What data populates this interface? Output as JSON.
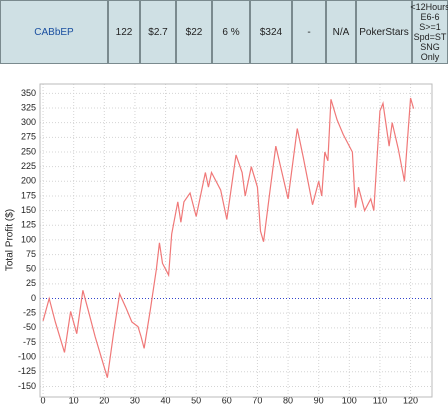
{
  "table": {
    "row": [
      "CABbEP",
      "122",
      "$2.7",
      "$22",
      "6 %",
      "$324",
      "-",
      "N/A",
      "PokerStars"
    ],
    "filter": [
      "<12Hours",
      "E6-6",
      "S>=1",
      "Spd=ST",
      "SNG",
      "Only"
    ]
  },
  "chart_data": {
    "type": "line",
    "y_label": "Total Profit ($)",
    "color": "#f07878",
    "grid": true,
    "x": [
      0,
      2,
      4,
      7,
      9,
      11,
      13,
      15,
      17,
      19,
      21,
      23,
      25,
      27,
      29,
      31,
      32,
      33,
      35,
      37,
      38,
      39,
      41,
      42,
      44,
      45,
      46,
      48,
      50,
      53,
      54,
      55,
      58,
      60,
      63,
      65,
      66,
      68,
      70,
      71,
      72,
      74,
      76,
      78,
      80,
      83,
      85,
      88,
      90,
      91,
      92,
      93,
      94,
      96,
      98,
      101,
      102,
      103,
      105,
      107,
      108,
      110,
      111,
      113,
      114,
      116,
      118,
      120,
      121
    ],
    "values": [
      -38,
      0,
      -40,
      -92,
      -22,
      -60,
      14,
      -25,
      -65,
      -100,
      -135,
      -60,
      8,
      -15,
      -40,
      -48,
      -65,
      -85,
      -20,
      50,
      95,
      60,
      40,
      110,
      165,
      130,
      165,
      180,
      140,
      215,
      190,
      215,
      185,
      135,
      245,
      215,
      175,
      225,
      190,
      115,
      97,
      180,
      260,
      215,
      170,
      290,
      240,
      160,
      200,
      175,
      250,
      235,
      340,
      305,
      280,
      250,
      155,
      190,
      150,
      170,
      150,
      320,
      333,
      260,
      300,
      255,
      200,
      342,
      324
    ],
    "xlim": [
      -1,
      127
    ],
    "ylim": [
      -168,
      366
    ],
    "xticks": [
      0,
      10,
      20,
      30,
      40,
      50,
      60,
      70,
      80,
      90,
      100,
      110,
      120
    ],
    "yticks": [
      -150,
      -125,
      -100,
      -75,
      -50,
      -25,
      0,
      25,
      50,
      75,
      100,
      125,
      150,
      175,
      200,
      225,
      250,
      275,
      300,
      325,
      350
    ]
  }
}
